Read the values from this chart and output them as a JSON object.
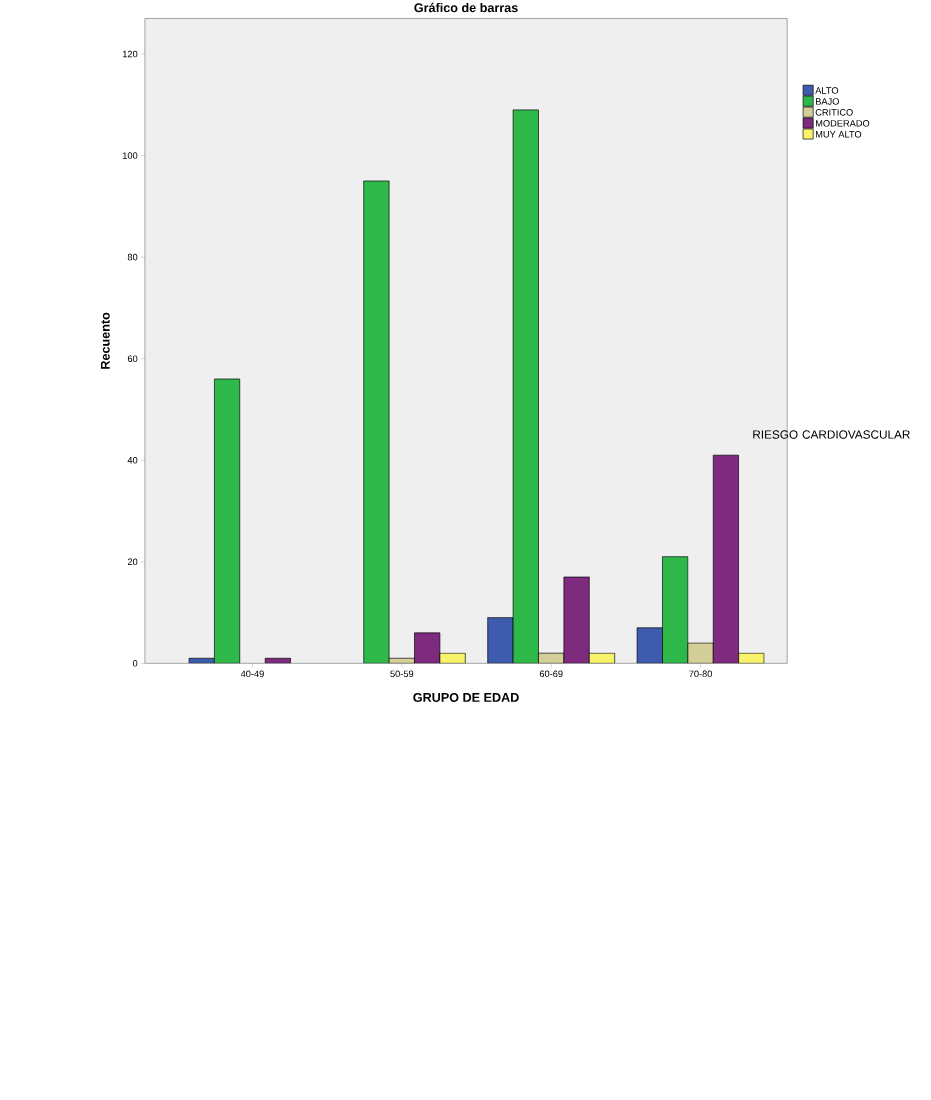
{
  "chart_data": {
    "type": "bar",
    "title": "Gráfico de barras",
    "xlabel": "GRUPO DE EDAD",
    "ylabel": "Recuento",
    "legend_title": "RIESGO CARDIOVASCULAR",
    "categories": [
      "40-49",
      "50-59",
      "60-69",
      "70-80"
    ],
    "series": [
      {
        "name": "ALTO",
        "color": "#3e5bad",
        "values": [
          1,
          null,
          9,
          7
        ]
      },
      {
        "name": "BAJO",
        "color": "#2eb84a",
        "values": [
          56,
          95,
          109,
          21
        ]
      },
      {
        "name": "CRITICO",
        "color": "#d4cf98",
        "values": [
          null,
          1,
          2,
          4
        ]
      },
      {
        "name": "MODERADO",
        "color": "#7e2a7e",
        "values": [
          1,
          6,
          17,
          41
        ]
      },
      {
        "name": "MUY ALTO",
        "color": "#f8f36a",
        "values": [
          null,
          2,
          2,
          2
        ]
      }
    ],
    "ylim": [
      0,
      127
    ],
    "yticks": [
      0,
      20,
      40,
      60,
      80,
      100,
      120
    ],
    "grid": false,
    "legend": "top right"
  }
}
